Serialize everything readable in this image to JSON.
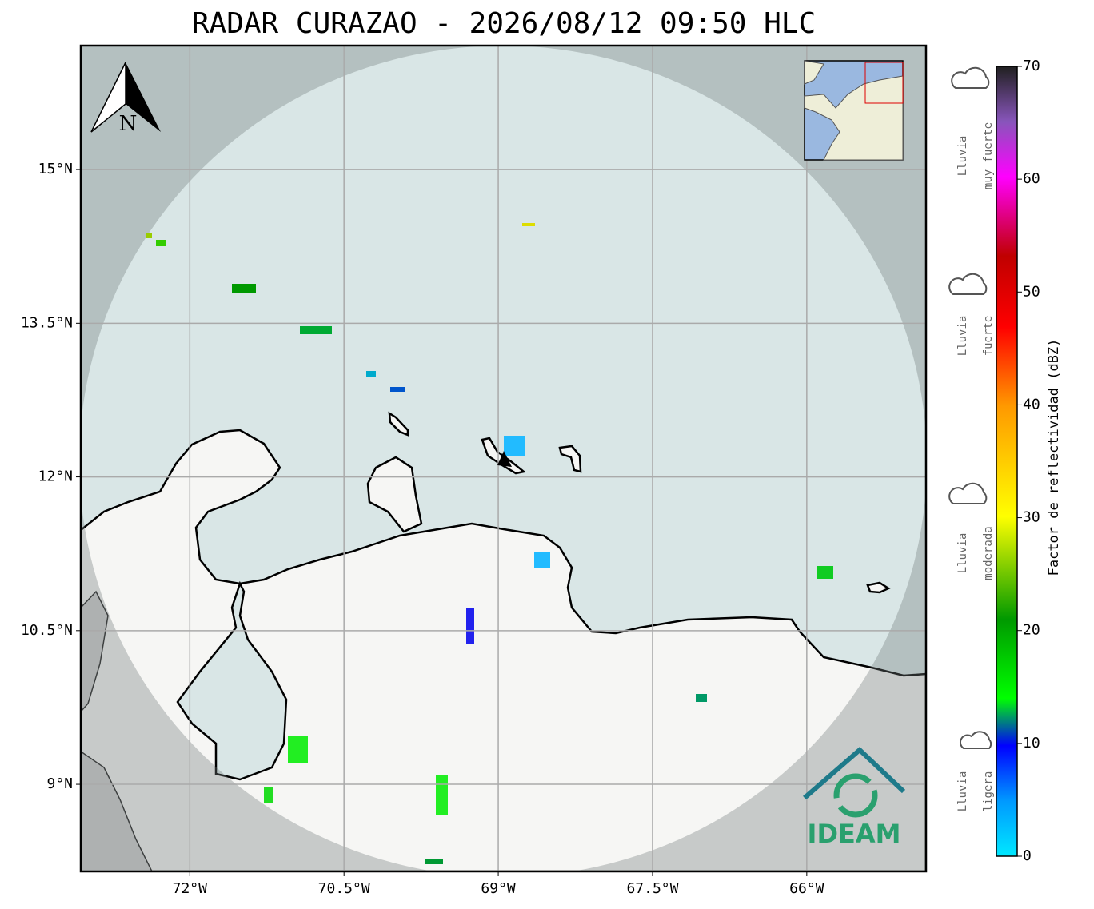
{
  "map": {
    "title": "RADAR CURAZAO - 2026/08/12 09:50 HLC",
    "xlim": [
      -73.06,
      -64.84
    ],
    "ylim": [
      8.15,
      16.21
    ],
    "xticks": [
      {
        "value": -72,
        "label": "72°W"
      },
      {
        "value": -70.5,
        "label": "70.5°W"
      },
      {
        "value": -69,
        "label": "69°W"
      },
      {
        "value": -67.5,
        "label": "67.5°W"
      },
      {
        "value": -66,
        "label": "66°W"
      }
    ],
    "yticks": [
      {
        "value": 15,
        "label": "15°N"
      },
      {
        "value": 13.5,
        "label": "13.5°N"
      },
      {
        "value": 12,
        "label": "12°N"
      },
      {
        "value": 10.5,
        "label": "10.5°N"
      },
      {
        "value": 9,
        "label": "9°N"
      }
    ],
    "north": "N",
    "logo": "IDEAM",
    "colorbar": {
      "label": "Factor de reflectividad (dBZ)",
      "lim": [
        0,
        70
      ],
      "ticks": [
        0,
        10,
        20,
        30,
        40,
        50,
        60,
        70
      ]
    },
    "rain_levels": [
      [
        "Lluvia",
        "muy fuerte"
      ],
      [
        "Lluvia",
        "fuerte"
      ],
      [
        "Lluvia",
        "moderada"
      ],
      [
        "Lluvia",
        "ligera"
      ]
    ]
  }
}
